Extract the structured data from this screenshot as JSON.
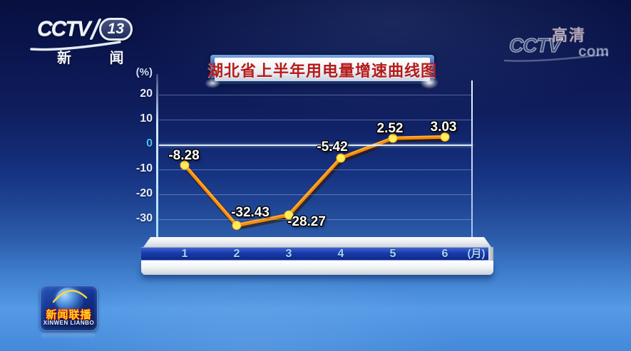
{
  "channel_badge": {
    "brand": "CCTV",
    "number": "13",
    "name": "新 闻"
  },
  "watermark": {
    "brand": "CCTV",
    "hd": "高清",
    "domain": "com"
  },
  "program_badge": {
    "title": "新闻联播",
    "subtitle": "XINWEN LIANBO"
  },
  "chart_data": {
    "type": "line",
    "title": "湖北省上半年用电量增速曲线图",
    "y_unit": "(%)",
    "x_unit": "(月)",
    "categories": [
      "1",
      "2",
      "3",
      "4",
      "5",
      "6"
    ],
    "values": [
      -8.28,
      -32.43,
      -28.27,
      -5.42,
      2.52,
      3.03
    ],
    "value_labels": [
      "-8.28",
      "-32.43",
      "-28.27",
      "-5.42",
      "2.52",
      "3.03"
    ],
    "y_ticks": [
      20,
      10,
      0,
      -10,
      -20,
      -30
    ],
    "ylim": [
      -35,
      25
    ],
    "grid": true,
    "legend_position": "none",
    "line_color": "#f78a00",
    "marker_color": "#ffee55"
  },
  "colors": {
    "title_text_red": "#b51b1b",
    "zero_tick_cyan": "#3fc9f5",
    "axis_band_blue": "#1a3aa8",
    "background_top": "#081040",
    "background_bottom": "#4489da"
  }
}
